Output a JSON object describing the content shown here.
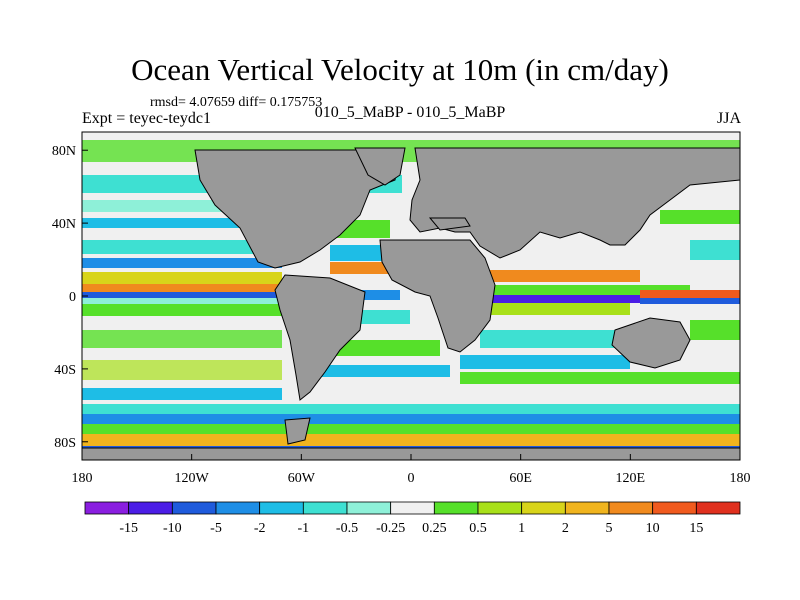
{
  "header": {
    "title": "Ocean Vertical Velocity at 10m (in cm/day)",
    "stats": "rmsd= 4.07659 diff= 0.175753",
    "experiment": "Expt = teyec-teydc1",
    "run": "010_5_MaBP - 010_5_MaBP",
    "season": "JJA"
  },
  "axes": {
    "lat_labels": [
      "80N",
      "40N",
      "0",
      "40S",
      "80S"
    ],
    "lat_values": [
      80,
      40,
      0,
      -40,
      -80
    ],
    "lon_labels": [
      "180",
      "120W",
      "60W",
      "0",
      "60E",
      "120E",
      "180"
    ],
    "lon_values": [
      -180,
      -120,
      -60,
      0,
      60,
      120,
      180
    ]
  },
  "colorbar": {
    "labels": [
      "-15",
      "-10",
      "-5",
      "-2",
      "-1",
      "-0.5",
      "-0.25",
      "0.25",
      "0.5",
      "1",
      "2",
      "5",
      "10",
      "15"
    ],
    "colors": [
      "#8a1ee0",
      "#4b1de6",
      "#1f5bdc",
      "#1e8ee6",
      "#1ebde6",
      "#3ee0d2",
      "#8ef0d8",
      "#f0f0f0",
      "#56e02a",
      "#a8e01a",
      "#d8d41a",
      "#f0b41e",
      "#f08a1e",
      "#f05a1e",
      "#e0301e"
    ]
  },
  "map": {
    "land_color": "#999999",
    "coast_color": "#000000"
  }
}
